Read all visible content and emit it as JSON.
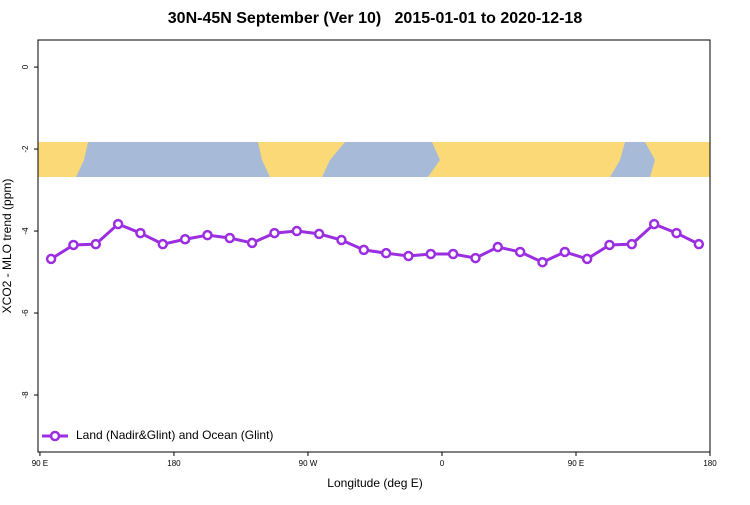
{
  "chart_data": {
    "type": "line",
    "title": "30N-45N September (Ver 10)   2015-01-01 to 2020-12-18",
    "xlabel": "Longitude (deg E)",
    "ylabel": "XCO2 - MLO trend (ppm)",
    "x": [
      97.5,
      112.5,
      127.5,
      142.5,
      157.5,
      172.5,
      187.5,
      202.5,
      217.5,
      232.5,
      247.5,
      262.5,
      277.5,
      292.5,
      307.5,
      322.5,
      337.5,
      352.5,
      367.5,
      382.5,
      397.5,
      412.5,
      427.5,
      442.5,
      457.5,
      472.5,
      487.5,
      502.5,
      517.5,
      532.5
    ],
    "series": [
      {
        "name": "Land (Nadir&Glint) and Ocean (Glint)",
        "color": "#9b2ee0",
        "values": [
          -4.68,
          -4.34,
          -4.32,
          -3.83,
          -4.05,
          -4.32,
          -4.2,
          -4.1,
          -4.17,
          -4.29,
          -4.05,
          -4.0,
          -4.07,
          -4.22,
          -4.46,
          -4.54,
          -4.61,
          -4.56,
          -4.56,
          -4.66,
          -4.39,
          -4.51,
          -4.76,
          -4.51,
          -4.68,
          -4.34,
          -4.32,
          -3.83,
          -4.05,
          -4.32
        ]
      }
    ],
    "xlim": [
      88.7,
      540
    ],
    "xticks": [
      {
        "value": 90,
        "label": "90 E"
      },
      180,
      {
        "value": 270,
        "label": "90 W"
      },
      {
        "value": 360,
        "label": "0"
      },
      {
        "value": 450,
        "label": "90 E"
      },
      {
        "value": 540,
        "label": "180"
      }
    ],
    "ylim": [
      -9.39,
      0.66
    ],
    "yticks": [
      0,
      -2,
      -4,
      -6,
      -8
    ],
    "legend": "bottom-left"
  }
}
